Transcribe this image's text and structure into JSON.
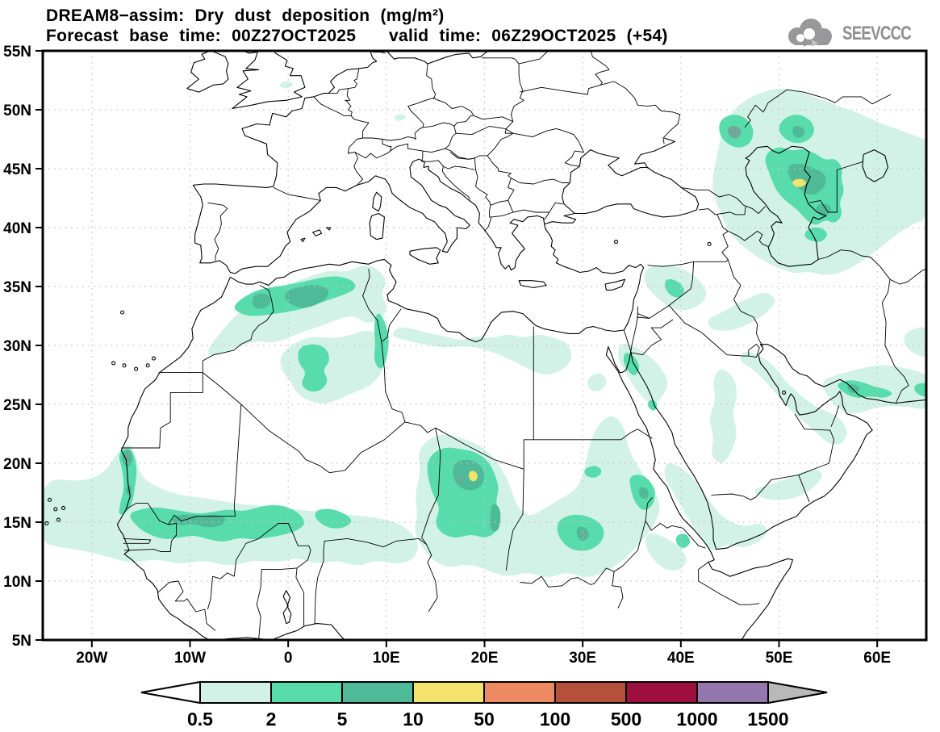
{
  "header": {
    "title": "DREAM8−assim: Dry dust deposition (mg/m²)",
    "forecast_base": "Forecast base time: 00Z27OCT2025",
    "valid_time": "valid time: 06Z29OCT2025 (+54)"
  },
  "logo": {
    "text": "SEEVCCC"
  },
  "map": {
    "lon_range": [
      -25,
      65
    ],
    "lat_range": [
      5,
      55
    ],
    "grid": {
      "lon_step": 10,
      "lat_step": 5,
      "color": "#c4c4c4"
    },
    "frame_color": "#000000",
    "coast_color": "#000000",
    "x_axis_labels": [
      {
        "lon": -20,
        "label": "20W"
      },
      {
        "lon": -10,
        "label": "10W"
      },
      {
        "lon": 0,
        "label": "0"
      },
      {
        "lon": 10,
        "label": "10E"
      },
      {
        "lon": 20,
        "label": "20E"
      },
      {
        "lon": 30,
        "label": "30E"
      },
      {
        "lon": 40,
        "label": "40E"
      },
      {
        "lon": 50,
        "label": "50E"
      },
      {
        "lon": 60,
        "label": "60E"
      }
    ],
    "y_axis_labels": [
      {
        "lat": 55,
        "label": "55N"
      },
      {
        "lat": 50,
        "label": "50N"
      },
      {
        "lat": 45,
        "label": "45N"
      },
      {
        "lat": 40,
        "label": "40N"
      },
      {
        "lat": 35,
        "label": "35N"
      },
      {
        "lat": 30,
        "label": "30N"
      },
      {
        "lat": 25,
        "label": "25N"
      },
      {
        "lat": 20,
        "label": "20N"
      },
      {
        "lat": 15,
        "label": "15N"
      },
      {
        "lat": 10,
        "label": "10N"
      },
      {
        "lat": 5,
        "label": "5N"
      }
    ]
  },
  "legend": {
    "values": [
      "0.5",
      "2",
      "5",
      "10",
      "50",
      "100",
      "500",
      "1000",
      "1500"
    ],
    "segment_colors": [
      "#d2f2e8",
      "#58dcae",
      "#4eba97",
      "#f3e26c",
      "#ee8a62",
      "#b5503c",
      "#9d1040",
      "#9477ad"
    ],
    "left_arrow_color": "#ffffff",
    "right_arrow_color": "#b9b9b9",
    "outline_color": "#000000"
  },
  "dust_palette": {
    "level_0_5": "#d2f2e8",
    "level_2": "#58dcae",
    "level_5": "#4eba97",
    "level_10": "#f3e26c",
    "gray_core": "#74a79a"
  }
}
